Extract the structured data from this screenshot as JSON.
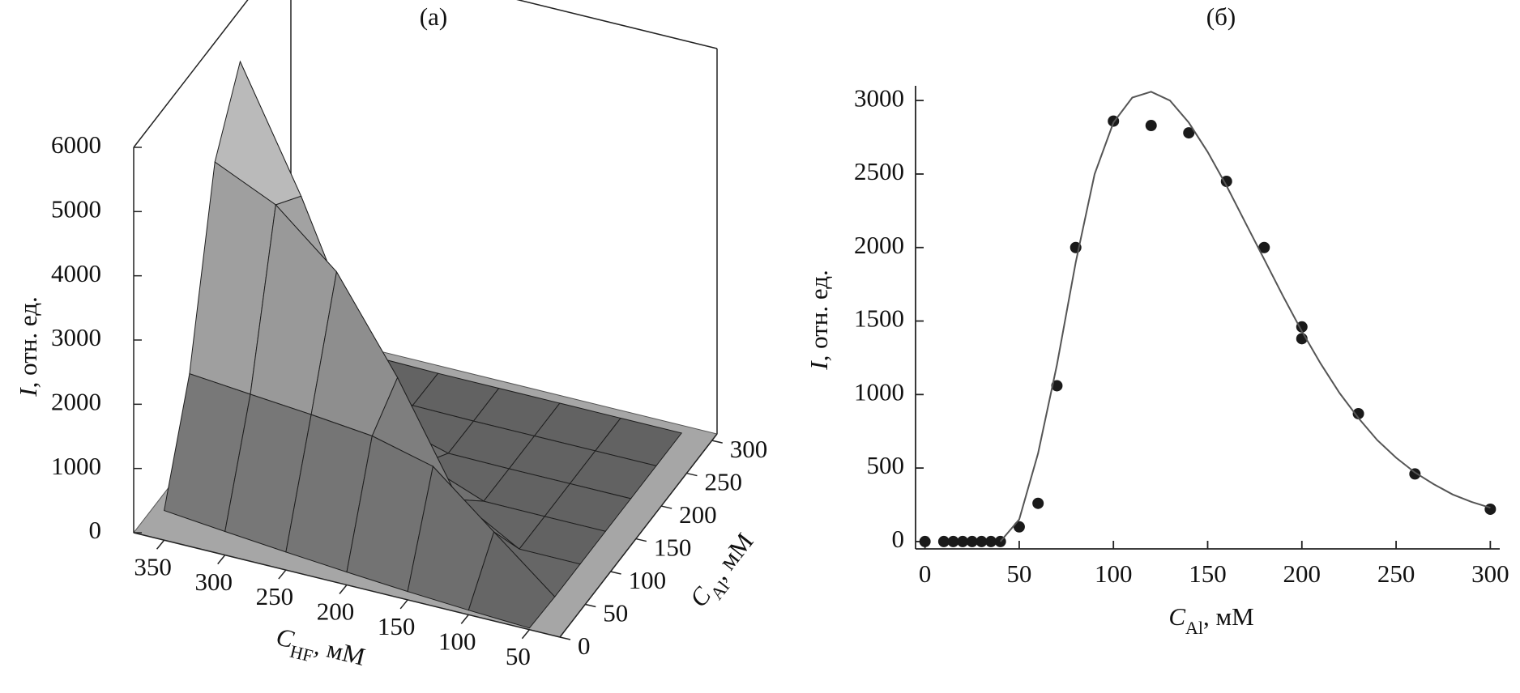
{
  "chart_data": [
    {
      "type": "surface",
      "title": "(а)",
      "x_label": {
        "symbol": "C",
        "subscript": "HF",
        "unit": ", мМ"
      },
      "y_label": {
        "symbol": "C",
        "subscript": "Al",
        "unit": ", мМ"
      },
      "z_label": {
        "symbol": "I",
        "unit": ", отн. ед."
      },
      "x": [
        50,
        100,
        150,
        200,
        250,
        300,
        350
      ],
      "y": [
        0,
        50,
        100,
        150,
        200,
        250,
        300
      ],
      "z": [
        [
          25,
          1,
          0,
          0,
          0,
          0,
          0
        ],
        [
          71,
          780,
          3,
          0,
          0,
          0,
          0
        ],
        [
          130,
          1568,
          540,
          5,
          0,
          0,
          0
        ],
        [
          200,
          1809,
          2208,
          365,
          8,
          0,
          0
        ],
        [
          279,
          1909,
          3622,
          1909,
          279,
          11,
          0
        ],
        [
          367,
          1993,
          4433,
          4057,
          1524,
          236,
          14
        ],
        [
          462,
          2082,
          4868,
          5922,
          3750,
          1236,
          212
        ]
      ],
      "xlim": [
        25,
        375
      ],
      "ylim": [
        0,
        310
      ],
      "zlim": [
        0,
        6000
      ],
      "xticks": [
        50,
        100,
        150,
        200,
        250,
        300,
        350
      ],
      "yticks": [
        0,
        50,
        100,
        150,
        200,
        250,
        300
      ],
      "zticks": [
        0,
        1000,
        2000,
        3000,
        4000,
        5000,
        6000
      ],
      "color": "#8c8c8c",
      "floor_color": "#a6a6a6"
    },
    {
      "type": "scatter",
      "title": "(б)",
      "x_label": {
        "symbol": "C",
        "subscript": "Al",
        "unit": ", мМ"
      },
      "y_label": {
        "symbol": "I",
        "unit": ", отн. ед."
      },
      "series": [
        {
          "type": "scatter",
          "color": "#1a1a1a",
          "x": [
            0,
            10,
            15,
            20,
            25,
            30,
            35,
            40,
            50,
            60,
            70,
            80,
            100,
            120,
            140,
            160,
            180,
            200,
            200,
            230,
            260,
            300
          ],
          "values": [
            0,
            0,
            0,
            0,
            0,
            0,
            0,
            0,
            100,
            260,
            1060,
            2000,
            2860,
            2830,
            2780,
            2450,
            2000,
            1460,
            1380,
            870,
            460,
            220
          ]
        },
        {
          "type": "line",
          "color": "#555555",
          "x": [
            40,
            50,
            60,
            70,
            80,
            90,
            100,
            110,
            120,
            130,
            140,
            150,
            160,
            170,
            180,
            190,
            200,
            210,
            220,
            230,
            240,
            250,
            260,
            270,
            280,
            290,
            300
          ],
          "values": [
            0,
            150,
            600,
            1200,
            1900,
            2500,
            2850,
            3020,
            3060,
            3000,
            2850,
            2650,
            2420,
            2170,
            1920,
            1670,
            1430,
            1210,
            1010,
            840,
            690,
            570,
            470,
            390,
            320,
            270,
            230
          ]
        }
      ],
      "xlim": [
        -5,
        305
      ],
      "ylim": [
        -50,
        3100
      ],
      "xticks": [
        0,
        50,
        100,
        150,
        200,
        250,
        300
      ],
      "yticks": [
        0,
        500,
        1000,
        1500,
        2000,
        2500,
        3000
      ]
    }
  ]
}
